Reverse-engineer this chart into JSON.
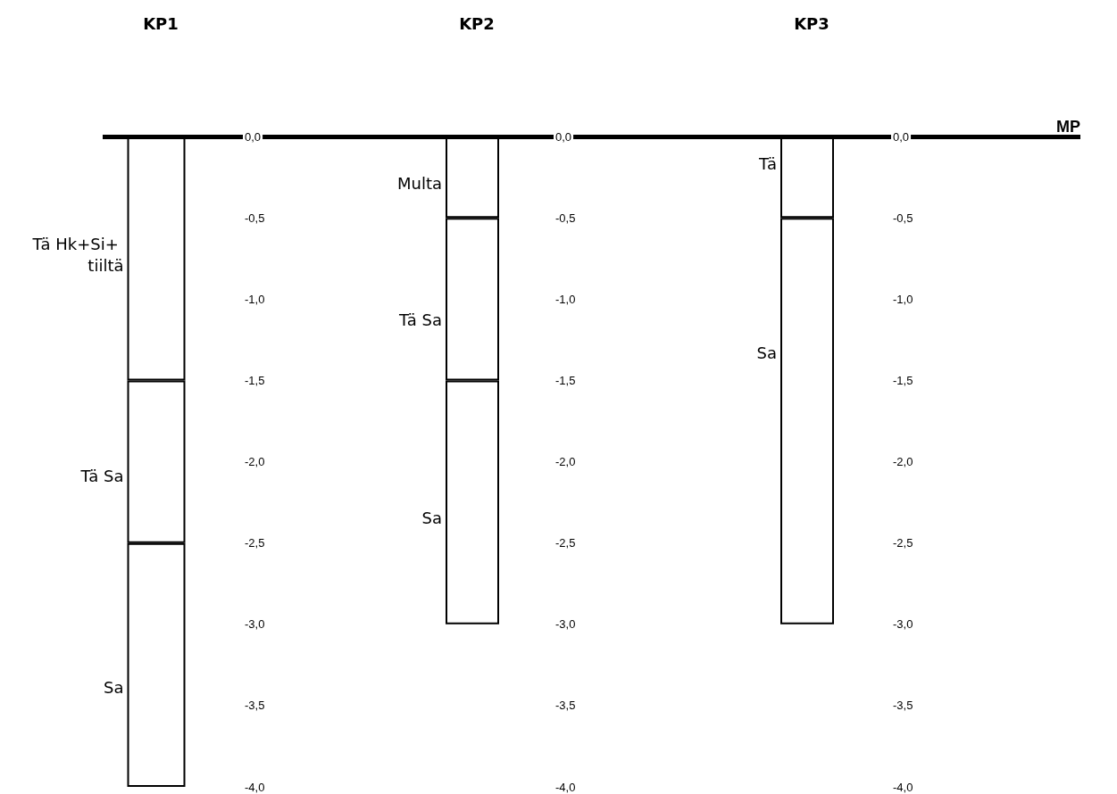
{
  "chart_data": [
    {
      "type": "bar",
      "title": "KP1",
      "categories": [
        null
      ],
      "stacked": true,
      "series": [
        {
          "color": "#ffffff",
          "values": [
            -1.5
          ]
        },
        {
          "color": "#ffffff",
          "values": [
            -1.0
          ]
        },
        {
          "color": "#ffffff",
          "values": [
            -1.5
          ]
        }
      ],
      "ylim": [
        -4,
        0
      ],
      "yticks": [
        {
          "value": 0,
          "label": "0,0"
        },
        {
          "value": -0.5,
          "label": "-0,5"
        },
        {
          "value": -1,
          "label": "-1,0"
        },
        {
          "value": -1.5,
          "label": "-1,5"
        },
        {
          "value": -2,
          "label": "-2,0"
        },
        {
          "value": -2.5,
          "label": "-2,5"
        },
        {
          "value": -3,
          "label": "-3,0"
        },
        {
          "value": -3.5,
          "label": "-3,5"
        },
        {
          "value": -4,
          "label": "-4,0"
        }
      ],
      "annotations": [
        "Tä Hk+Si+ tiiltä",
        "Tä Sa",
        "Sa"
      ],
      "ref_lines": [
        {
          "axis": "y",
          "value": 0,
          "label": null
        }
      ]
    },
    {
      "type": "bar",
      "title": "KP2",
      "categories": [
        null
      ],
      "stacked": true,
      "series": [
        {
          "color": "#ffffff",
          "values": [
            -0.5
          ]
        },
        {
          "color": "#ffffff",
          "values": [
            -1.0
          ]
        },
        {
          "color": "#ffffff",
          "values": [
            -1.5
          ]
        }
      ],
      "ylim": [
        -4,
        0
      ],
      "yticks": [
        {
          "value": 0,
          "label": "0,0"
        },
        {
          "value": -0.5,
          "label": "-0,5"
        },
        {
          "value": -1,
          "label": "-1,0"
        },
        {
          "value": -1.5,
          "label": "-1,5"
        },
        {
          "value": -2,
          "label": "-2,0"
        },
        {
          "value": -2.5,
          "label": "-2,5"
        },
        {
          "value": -3,
          "label": "-3,0"
        },
        {
          "value": -3.5,
          "label": "-3,5"
        },
        {
          "value": -4,
          "label": "-4,0"
        }
      ],
      "annotations": [
        "Multa",
        "Tä Sa",
        "Sa"
      ],
      "ref_lines": [
        {
          "axis": "y",
          "value": 0,
          "label": null
        }
      ]
    },
    {
      "type": "bar",
      "title": "KP3",
      "categories": [
        null
      ],
      "stacked": true,
      "series": [
        {
          "color": "#ffffff",
          "values": [
            -0.5
          ]
        },
        {
          "color": "#ffffff",
          "values": [
            -2.5
          ]
        }
      ],
      "ylim": [
        -4,
        0
      ],
      "yticks": [
        {
          "value": 0,
          "label": "0,0"
        },
        {
          "value": -0.5,
          "label": "-0,5"
        },
        {
          "value": -1,
          "label": "-1,0"
        },
        {
          "value": -1.5,
          "label": "-1,5"
        },
        {
          "value": -2,
          "label": "-2,0"
        },
        {
          "value": -2.5,
          "label": "-2,5"
        },
        {
          "value": -3,
          "label": "-3,0"
        },
        {
          "value": -3.5,
          "label": "-3,5"
        },
        {
          "value": -4,
          "label": "-4,0"
        }
      ],
      "annotations": [
        "Tä",
        "Sa"
      ],
      "ref_lines": [
        {
          "axis": "y",
          "value": 0,
          "label": "MP"
        }
      ]
    }
  ]
}
